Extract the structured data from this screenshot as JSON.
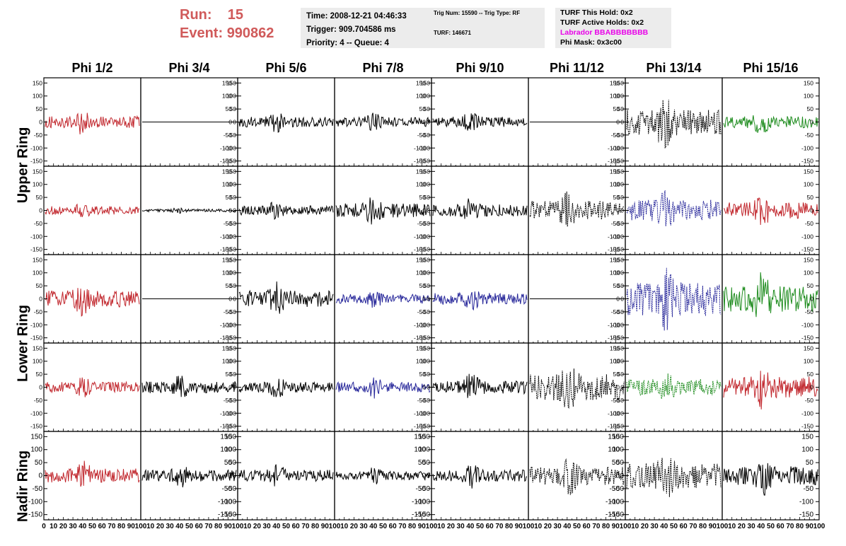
{
  "header": {
    "run_label": "Run:",
    "run_value": "15",
    "event_label": "Event:",
    "event_value": "990862",
    "time": "Time: 2008-12-21 04:46:33",
    "trigger": "Trigger: 909.704586 ms",
    "priority": "Priority: 4 -- Queue: 4",
    "trig_num": "Trig Num: 15590 -- Trig Type: RF",
    "turf": "TURF: 146671",
    "turf_this_hold": "TURF This Hold: 0x2",
    "turf_active_holds": "TURF Active Holds: 0x2",
    "labrador": "Labrador BBABBBBBBB",
    "phi_mask": "Phi Mask: 0x3c00"
  },
  "colors": {
    "run": "#d05a5a",
    "labrador": "#e800e8",
    "red": "#c1272d",
    "blue": "#27279a",
    "green": "#1e8c1e",
    "black": "#000000"
  },
  "columns": [
    "Phi 1/2",
    "Phi 3/4",
    "Phi 5/6",
    "Phi 7/8",
    "Phi 9/10",
    "Phi 11/12",
    "Phi 13/14",
    "Phi 15/16"
  ],
  "ring_labels": [
    "Upper Ring",
    "Lower Ring",
    "Nadir Ring"
  ],
  "chart_data": {
    "type": "line",
    "description_rows": 5,
    "ylim": [
      -170,
      170
    ],
    "xlim": [
      0,
      100
    ],
    "y_ticks": [
      "150",
      "100",
      "50",
      "0",
      "-50",
      "-100",
      "-150"
    ],
    "x_ticks": [
      "0",
      "10",
      "20",
      "30",
      "40",
      "50",
      "60",
      "70",
      "80",
      "90",
      "100"
    ],
    "panels": [
      [
        {
          "color": "red",
          "amp": 25,
          "style": "solid"
        },
        {
          "color": "black",
          "amp": 0,
          "style": "solid"
        },
        {
          "color": "black",
          "amp": 22,
          "style": "solid"
        },
        {
          "color": "black",
          "amp": 20,
          "style": "solid"
        },
        {
          "color": "black",
          "amp": 22,
          "style": "solid"
        },
        {
          "color": "black",
          "amp": 0,
          "style": "solid"
        },
        {
          "color": "black",
          "amp": 55,
          "style": "dashed"
        },
        {
          "color": "green",
          "amp": 25,
          "style": "solid"
        }
      ],
      [
        {
          "color": "red",
          "amp": 18,
          "style": "solid"
        },
        {
          "color": "black",
          "amp": 6,
          "style": "solid"
        },
        {
          "color": "black",
          "amp": 20,
          "style": "solid"
        },
        {
          "color": "black",
          "amp": 30,
          "style": "solid"
        },
        {
          "color": "black",
          "amp": 25,
          "style": "solid"
        },
        {
          "color": "black",
          "amp": 40,
          "style": "dashed"
        },
        {
          "color": "blue",
          "amp": 45,
          "style": "dashed"
        },
        {
          "color": "red",
          "amp": 35,
          "style": "solid"
        }
      ],
      [
        {
          "color": "red",
          "amp": 35,
          "style": "solid"
        },
        {
          "color": "black",
          "amp": 0,
          "style": "solid"
        },
        {
          "color": "black",
          "amp": 35,
          "style": "solid"
        },
        {
          "color": "blue",
          "amp": 20,
          "style": "solid"
        },
        {
          "color": "blue",
          "amp": 25,
          "style": "solid"
        },
        {
          "color": "black",
          "amp": 0,
          "style": "solid"
        },
        {
          "color": "blue",
          "amp": 70,
          "style": "dashed"
        },
        {
          "color": "green",
          "amp": 55,
          "style": "solid"
        }
      ],
      [
        {
          "color": "red",
          "amp": 22,
          "style": "solid"
        },
        {
          "color": "black",
          "amp": 25,
          "style": "solid"
        },
        {
          "color": "black",
          "amp": 22,
          "style": "solid"
        },
        {
          "color": "blue",
          "amp": 22,
          "style": "solid"
        },
        {
          "color": "black",
          "amp": 28,
          "style": "solid"
        },
        {
          "color": "black",
          "amp": 55,
          "style": "dashed"
        },
        {
          "color": "green",
          "amp": 35,
          "style": "dashed"
        },
        {
          "color": "red",
          "amp": 45,
          "style": "solid"
        }
      ],
      [
        {
          "color": "red",
          "amp": 30,
          "style": "solid"
        },
        {
          "color": "black",
          "amp": 25,
          "style": "solid"
        },
        {
          "color": "black",
          "amp": 25,
          "style": "solid"
        },
        {
          "color": "black",
          "amp": 18,
          "style": "solid"
        },
        {
          "color": "black",
          "amp": 25,
          "style": "solid"
        },
        {
          "color": "black",
          "amp": 40,
          "style": "dashed"
        },
        {
          "color": "black",
          "amp": 55,
          "style": "dashed"
        },
        {
          "color": "black",
          "amp": 40,
          "style": "solid"
        }
      ]
    ]
  }
}
